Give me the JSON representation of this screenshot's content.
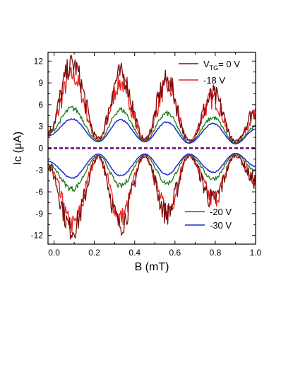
{
  "chart_data": {
    "type": "line",
    "xlabel": "B (mT)",
    "ylabel": "Ic (μA)",
    "xlim": [
      -0.03,
      1.0
    ],
    "ylim": [
      -13.2,
      13.2
    ],
    "xticks": [
      0.0,
      0.2,
      0.4,
      0.6,
      0.8,
      1.0
    ],
    "xtick_labels": [
      "0.0",
      "0.2",
      "0.4",
      "0.6",
      "0.8",
      "1.0"
    ],
    "yticks": [
      12,
      9,
      6,
      3,
      0,
      -3,
      -6,
      -9,
      -12
    ],
    "ytick_labels": [
      "12",
      "9",
      "6",
      "3",
      "0",
      "-3",
      "-6",
      "-9",
      "-12"
    ],
    "legend": {
      "vtg_prefix": "V",
      "vtg_sub": "TG",
      "vtg_value": "= 0 V",
      "s18": "-18 V",
      "s20": "-20 V",
      "s30": "-30 V"
    },
    "series": [
      {
        "name": "V_TG = 0 V",
        "color": "#7a0c0c",
        "peaks": [
          {
            "x": -0.03,
            "y": 2.2
          },
          {
            "x": 0.09,
            "y": 11.6
          },
          {
            "x": 0.22,
            "y": 1.3
          },
          {
            "x": 0.33,
            "y": 10.2
          },
          {
            "x": 0.45,
            "y": 1.2
          },
          {
            "x": 0.56,
            "y": 9.3
          },
          {
            "x": 0.67,
            "y": 1.0
          },
          {
            "x": 0.79,
            "y": 7.2
          },
          {
            "x": 0.9,
            "y": 0.9
          },
          {
            "x": 1.0,
            "y": 5.1
          }
        ],
        "negative": [
          {
            "x": -0.03,
            "y": -2.5
          },
          {
            "x": 0.09,
            "y": -11.2
          },
          {
            "x": 0.22,
            "y": -1.2
          },
          {
            "x": 0.33,
            "y": -10.5
          },
          {
            "x": 0.45,
            "y": -1.0
          },
          {
            "x": 0.56,
            "y": -9.0
          },
          {
            "x": 0.67,
            "y": -1.0
          },
          {
            "x": 0.79,
            "y": -7.2
          },
          {
            "x": 0.9,
            "y": -1.0
          },
          {
            "x": 1.0,
            "y": -4.5
          }
        ]
      },
      {
        "name": "-18 V",
        "color": "#e8231f",
        "peaks": [
          {
            "x": -0.03,
            "y": 2.0
          },
          {
            "x": 0.09,
            "y": 10.0
          },
          {
            "x": 0.22,
            "y": 1.2
          },
          {
            "x": 0.33,
            "y": 9.0
          },
          {
            "x": 0.45,
            "y": 1.1
          },
          {
            "x": 0.56,
            "y": 8.5
          },
          {
            "x": 0.67,
            "y": 1.0
          },
          {
            "x": 0.79,
            "y": 6.8
          },
          {
            "x": 0.9,
            "y": 0.8
          },
          {
            "x": 1.0,
            "y": 4.5
          }
        ],
        "negative": [
          {
            "x": -0.03,
            "y": -2.4
          },
          {
            "x": 0.09,
            "y": -10.5
          },
          {
            "x": 0.22,
            "y": -1.2
          },
          {
            "x": 0.33,
            "y": -9.5
          },
          {
            "x": 0.45,
            "y": -1.0
          },
          {
            "x": 0.56,
            "y": -8.5
          },
          {
            "x": 0.67,
            "y": -1.0
          },
          {
            "x": 0.79,
            "y": -7.0
          },
          {
            "x": 0.9,
            "y": -1.0
          },
          {
            "x": 1.0,
            "y": -4.2
          }
        ]
      },
      {
        "name": "-20 V",
        "color": "#1e7a1e",
        "peaks": [
          {
            "x": -0.03,
            "y": 2.0
          },
          {
            "x": 0.09,
            "y": 5.5
          },
          {
            "x": 0.22,
            "y": 1.0
          },
          {
            "x": 0.33,
            "y": 5.3
          },
          {
            "x": 0.45,
            "y": 1.0
          },
          {
            "x": 0.56,
            "y": 4.8
          },
          {
            "x": 0.67,
            "y": 0.8
          },
          {
            "x": 0.79,
            "y": 4.2
          },
          {
            "x": 0.9,
            "y": 0.7
          },
          {
            "x": 1.0,
            "y": 3.0
          }
        ],
        "negative": [
          {
            "x": -0.03,
            "y": -2.2
          },
          {
            "x": 0.09,
            "y": -5.6
          },
          {
            "x": 0.22,
            "y": -1.0
          },
          {
            "x": 0.33,
            "y": -5.2
          },
          {
            "x": 0.45,
            "y": -0.9
          },
          {
            "x": 0.56,
            "y": -4.8
          },
          {
            "x": 0.67,
            "y": -0.9
          },
          {
            "x": 0.79,
            "y": -4.2
          },
          {
            "x": 0.9,
            "y": -0.8
          },
          {
            "x": 1.0,
            "y": -3.0
          }
        ]
      },
      {
        "name": "-30 V",
        "color": "#1a2fd6",
        "peaks": [
          {
            "x": -0.03,
            "y": 1.7
          },
          {
            "x": 0.09,
            "y": 4.0
          },
          {
            "x": 0.22,
            "y": 0.9
          },
          {
            "x": 0.33,
            "y": 3.9
          },
          {
            "x": 0.45,
            "y": 0.9
          },
          {
            "x": 0.56,
            "y": 3.6
          },
          {
            "x": 0.67,
            "y": 0.7
          },
          {
            "x": 0.79,
            "y": 3.4
          },
          {
            "x": 0.9,
            "y": 0.6
          },
          {
            "x": 1.0,
            "y": 2.6
          }
        ],
        "negative": [
          {
            "x": -0.03,
            "y": -1.8
          },
          {
            "x": 0.09,
            "y": -4.1
          },
          {
            "x": 0.22,
            "y": -0.8
          },
          {
            "x": 0.33,
            "y": -3.8
          },
          {
            "x": 0.45,
            "y": -0.8
          },
          {
            "x": 0.56,
            "y": -3.6
          },
          {
            "x": 0.67,
            "y": -0.8
          },
          {
            "x": 0.79,
            "y": -3.3
          },
          {
            "x": 0.9,
            "y": -0.7
          },
          {
            "x": 1.0,
            "y": -2.5
          }
        ]
      }
    ],
    "zero_line": {
      "y": 0,
      "color": "#7b2a8f",
      "style": "dashed"
    }
  }
}
